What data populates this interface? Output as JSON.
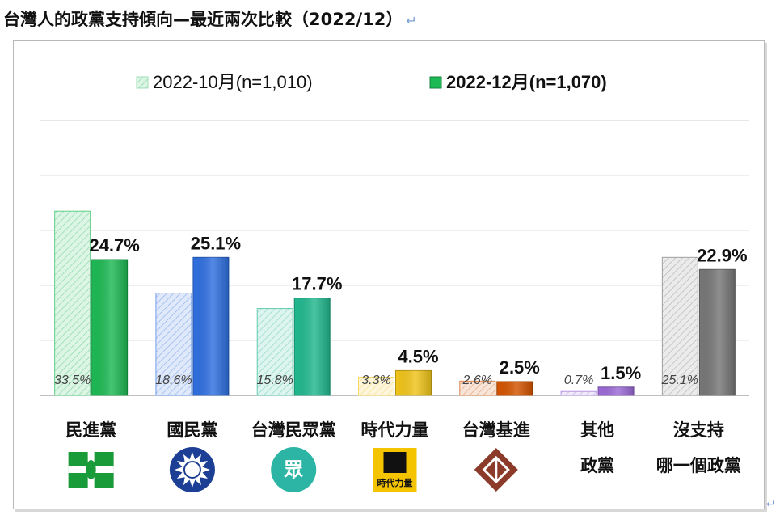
{
  "title": "台灣人的政黨支持傾向—最近兩次比較（2022/12）",
  "title_return_mark": "↵",
  "edge_mark": "↵",
  "colors": {
    "dpp": "#1db954",
    "kmt": "#2f6fe0",
    "tpp": "#22b88f",
    "npp": "#f0c419",
    "tsp": "#d35400",
    "other": "#9b6ad6",
    "none": "#777777"
  },
  "chart_data": {
    "type": "bar",
    "title": "",
    "categories": [
      {
        "label": [
          "民進黨"
        ],
        "color_key": "dpp",
        "logo": "dpp-logo-icon"
      },
      {
        "label": [
          "國民黨"
        ],
        "color_key": "kmt",
        "logo": "kmt-logo-icon"
      },
      {
        "label": [
          "台灣民眾黨"
        ],
        "color_key": "tpp",
        "logo": "tpp-logo-icon",
        "logo_text": "眾"
      },
      {
        "label": [
          "時代力量"
        ],
        "color_key": "npp",
        "logo": "npp-logo-icon",
        "logo_text": "時代力量"
      },
      {
        "label": [
          "台灣基進"
        ],
        "color_key": "tsp",
        "logo": "tsp-logo-icon"
      },
      {
        "label": [
          "其他",
          "政黨"
        ],
        "color_key": "other",
        "logo": ""
      },
      {
        "label": [
          "沒支持",
          "哪一個政黨"
        ],
        "color_key": "none",
        "logo": ""
      }
    ],
    "series": [
      {
        "name": "2022-10月(n=1,010)",
        "values": [
          33.5,
          18.6,
          15.8,
          3.3,
          2.6,
          0.7,
          25.1
        ],
        "labels": [
          "33.5%",
          "18.6%",
          "15.8%",
          "3.3%",
          "2.6%",
          "0.7%",
          "25.1%"
        ],
        "pattern": "hatched-light"
      },
      {
        "name": "2022-12月(n=1,070)",
        "values": [
          24.7,
          25.1,
          17.7,
          4.5,
          2.5,
          1.5,
          22.9
        ],
        "labels": [
          "24.7%",
          "25.1%",
          "17.7%",
          "4.5%",
          "2.5%",
          "1.5%",
          "22.9%"
        ],
        "pattern": "solid"
      }
    ],
    "ylim": [
      0,
      50
    ],
    "grid": true,
    "legend_position": "top"
  }
}
